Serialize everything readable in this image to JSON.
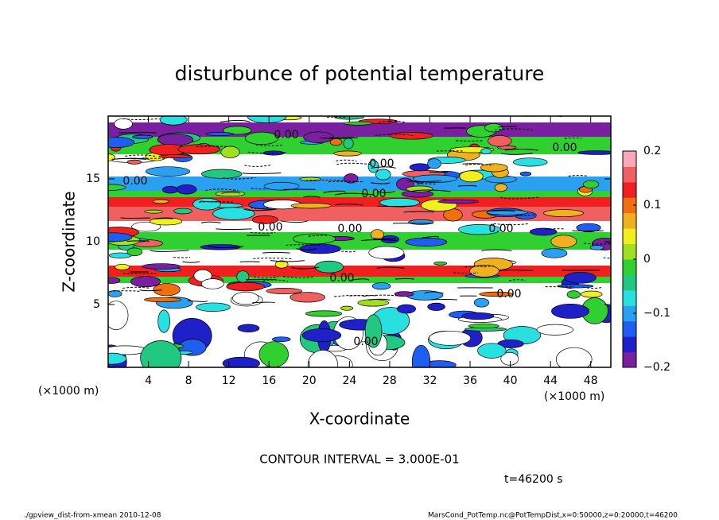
{
  "chart_data": {
    "type": "contour",
    "title": "disturbunce of potential temperature",
    "xlabel": "X-coordinate",
    "ylabel": "Z-coordinate",
    "x_unit": "(×1000 m)",
    "y_unit": "(×1000 m)",
    "xlim": [
      0,
      50
    ],
    "xticks": [
      4,
      8,
      12,
      16,
      20,
      24,
      28,
      32,
      36,
      40,
      44,
      48
    ],
    "ylim": [
      0,
      20
    ],
    "yticks": [
      5,
      10,
      15
    ],
    "contour_label": "0.00",
    "colorbar": {
      "lim": [
        -0.2,
        0.2
      ],
      "ticks": [
        {
          "value": -0.2,
          "label": "−0.2"
        },
        {
          "value": -0.1,
          "label": "−0.1"
        },
        0,
        0.1,
        0.2
      ],
      "colors": [
        "#7a1fa0",
        "#2020c8",
        "#1e5ef0",
        "#2aa0f0",
        "#28e0e0",
        "#20c880",
        "#30d030",
        "#a0e020",
        "#f0f020",
        "#f0b020",
        "#f07010",
        "#f02020",
        "#f06060",
        "#f8a8b8"
      ]
    },
    "annotations": [
      "CONTOUR INTERVAL = 3.000E-01",
      "t=46200 s"
    ],
    "footer_left": "./gpview_dist-from-xmean  2010-12-08",
    "footer_right": "MarsCond_PotTemp.nc@PotTempDist,x=0:50000,z=0:20000,t=46200"
  }
}
